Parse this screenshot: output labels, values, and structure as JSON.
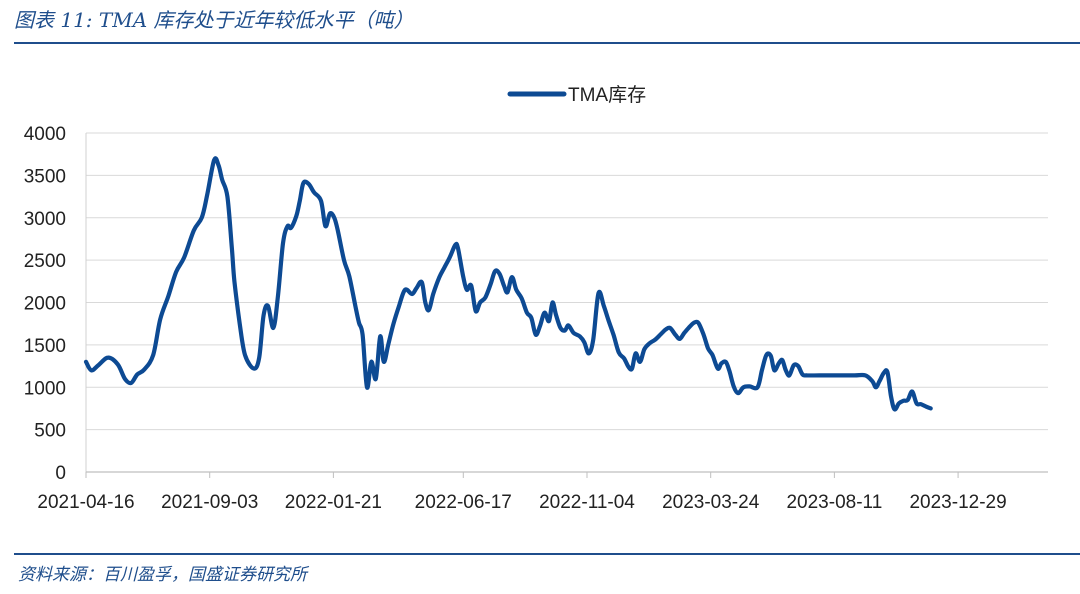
{
  "figure": {
    "title": "图表 11:  TMA 库存处于近年较低水平（吨）",
    "source": "资料来源：百川盈孚，国盛证券研究所"
  },
  "colors": {
    "series": "#0d4a93",
    "grid": "#d9d9d9",
    "accent": "#1f4e8c"
  },
  "chart_data": {
    "type": "line",
    "title": "",
    "xlabel": "",
    "ylabel": "",
    "ylim": [
      0,
      4000
    ],
    "yticks": [
      0,
      500,
      1000,
      1500,
      2000,
      2500,
      3000,
      3500,
      4000
    ],
    "x_tick_labels": [
      "2021-04-16",
      "2021-09-03",
      "2022-01-21",
      "2022-06-17",
      "2022-11-04",
      "2023-03-24",
      "2023-08-11",
      "2023-12-29"
    ],
    "x_tick_days": [
      0,
      140,
      280,
      427,
      567,
      707,
      847,
      987
    ],
    "x_end_day": 1092,
    "grid": true,
    "legend_position": "top-center",
    "series": [
      {
        "name": "TMA库存",
        "color": "#0d4a93",
        "points": [
          [
            0,
            1300
          ],
          [
            6,
            1200
          ],
          [
            14,
            1260
          ],
          [
            25,
            1350
          ],
          [
            36,
            1270
          ],
          [
            44,
            1100
          ],
          [
            51,
            1050
          ],
          [
            58,
            1150
          ],
          [
            66,
            1210
          ],
          [
            76,
            1380
          ],
          [
            84,
            1800
          ],
          [
            93,
            2070
          ],
          [
            102,
            2360
          ],
          [
            111,
            2530
          ],
          [
            122,
            2850
          ],
          [
            131,
            3000
          ],
          [
            137,
            3260
          ],
          [
            145,
            3680
          ],
          [
            150,
            3620
          ],
          [
            154,
            3450
          ],
          [
            160,
            3250
          ],
          [
            165,
            2650
          ],
          [
            168,
            2250
          ],
          [
            174,
            1750
          ],
          [
            180,
            1380
          ],
          [
            190,
            1220
          ],
          [
            196,
            1350
          ],
          [
            201,
            1850
          ],
          [
            206,
            1960
          ],
          [
            212,
            1700
          ],
          [
            217,
            2050
          ],
          [
            223,
            2700
          ],
          [
            228,
            2900
          ],
          [
            232,
            2880
          ],
          [
            238,
            3020
          ],
          [
            242,
            3200
          ],
          [
            246,
            3410
          ],
          [
            252,
            3400
          ],
          [
            258,
            3300
          ],
          [
            266,
            3200
          ],
          [
            271,
            2900
          ],
          [
            276,
            3050
          ],
          [
            281,
            3000
          ],
          [
            285,
            2850
          ],
          [
            292,
            2500
          ],
          [
            298,
            2310
          ],
          [
            305,
            1950
          ],
          [
            309,
            1760
          ],
          [
            313,
            1620
          ],
          [
            318,
            1000
          ],
          [
            323,
            1300
          ],
          [
            328,
            1100
          ],
          [
            333,
            1600
          ],
          [
            337,
            1300
          ],
          [
            342,
            1500
          ],
          [
            348,
            1750
          ],
          [
            354,
            1950
          ],
          [
            361,
            2150
          ],
          [
            369,
            2100
          ],
          [
            374,
            2170
          ],
          [
            380,
            2240
          ],
          [
            384,
            2000
          ],
          [
            388,
            1910
          ],
          [
            393,
            2100
          ],
          [
            400,
            2300
          ],
          [
            406,
            2420
          ],
          [
            412,
            2540
          ],
          [
            418,
            2680
          ],
          [
            421,
            2640
          ],
          [
            427,
            2300
          ],
          [
            431,
            2150
          ],
          [
            436,
            2200
          ],
          [
            441,
            1900
          ],
          [
            446,
            2000
          ],
          [
            452,
            2060
          ],
          [
            458,
            2220
          ],
          [
            463,
            2370
          ],
          [
            468,
            2340
          ],
          [
            473,
            2200
          ],
          [
            477,
            2120
          ],
          [
            482,
            2300
          ],
          [
            487,
            2150
          ],
          [
            493,
            2050
          ],
          [
            499,
            1880
          ],
          [
            504,
            1820
          ],
          [
            509,
            1620
          ],
          [
            514,
            1730
          ],
          [
            519,
            1880
          ],
          [
            524,
            1780
          ],
          [
            528,
            2000
          ],
          [
            532,
            1850
          ],
          [
            537,
            1700
          ],
          [
            542,
            1670
          ],
          [
            546,
            1730
          ],
          [
            552,
            1640
          ],
          [
            559,
            1600
          ],
          [
            564,
            1530
          ],
          [
            569,
            1400
          ],
          [
            574,
            1560
          ],
          [
            580,
            2110
          ],
          [
            586,
            1960
          ],
          [
            591,
            1800
          ],
          [
            597,
            1620
          ],
          [
            603,
            1410
          ],
          [
            609,
            1340
          ],
          [
            614,
            1240
          ],
          [
            618,
            1220
          ],
          [
            622,
            1400
          ],
          [
            627,
            1300
          ],
          [
            632,
            1450
          ],
          [
            638,
            1520
          ],
          [
            644,
            1560
          ],
          [
            650,
            1620
          ],
          [
            656,
            1680
          ],
          [
            661,
            1700
          ],
          [
            667,
            1620
          ],
          [
            672,
            1570
          ],
          [
            677,
            1640
          ],
          [
            682,
            1700
          ],
          [
            688,
            1760
          ],
          [
            693,
            1760
          ],
          [
            699,
            1620
          ],
          [
            704,
            1460
          ],
          [
            709,
            1380
          ],
          [
            715,
            1220
          ],
          [
            719,
            1280
          ],
          [
            724,
            1300
          ],
          [
            728,
            1200
          ],
          [
            733,
            1010
          ],
          [
            738,
            930
          ],
          [
            744,
            1000
          ],
          [
            751,
            1010
          ],
          [
            760,
            1000
          ],
          [
            765,
            1200
          ],
          [
            770,
            1380
          ],
          [
            775,
            1370
          ],
          [
            779,
            1200
          ],
          [
            784,
            1280
          ],
          [
            788,
            1320
          ],
          [
            792,
            1200
          ],
          [
            796,
            1140
          ],
          [
            801,
            1260
          ],
          [
            806,
            1250
          ],
          [
            811,
            1150
          ],
          [
            816,
            1140
          ],
          [
            830,
            1140
          ],
          [
            850,
            1140
          ],
          [
            870,
            1140
          ],
          [
            882,
            1140
          ],
          [
            890,
            1070
          ],
          [
            894,
            1000
          ],
          [
            898,
            1070
          ],
          [
            903,
            1170
          ],
          [
            907,
            1180
          ],
          [
            911,
            900
          ],
          [
            915,
            740
          ],
          [
            920,
            810
          ],
          [
            925,
            840
          ],
          [
            930,
            850
          ],
          [
            935,
            950
          ],
          [
            940,
            810
          ],
          [
            945,
            800
          ],
          [
            951,
            770
          ],
          [
            956,
            750
          ]
        ]
      }
    ]
  }
}
